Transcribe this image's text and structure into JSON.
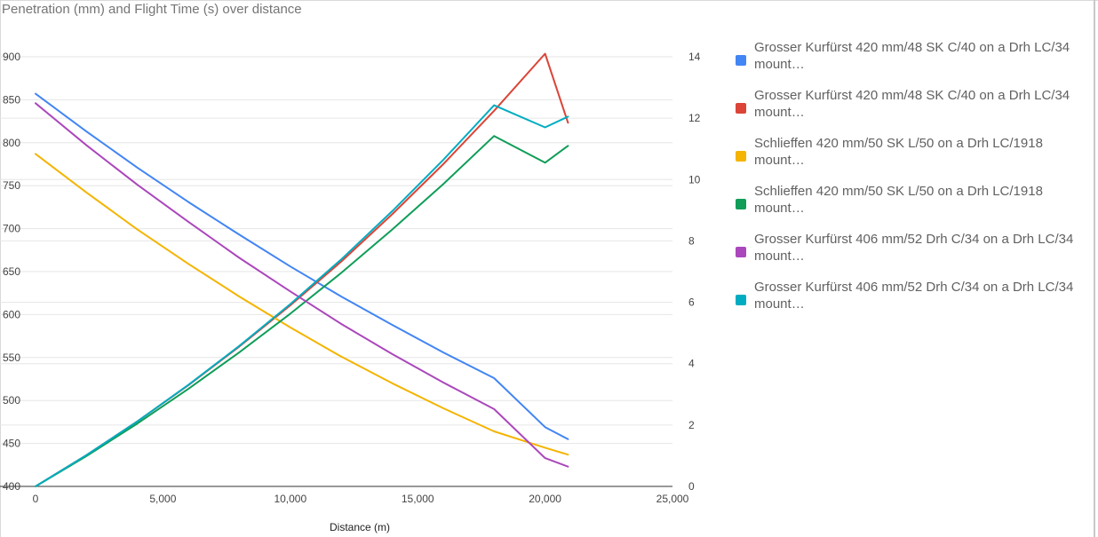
{
  "window": {
    "title": "Penetration (mm) and Flight Time (s) over distance"
  },
  "chart_data": {
    "type": "line",
    "title": "Penetration (mm) and Flight Time (s) over distance",
    "xlabel": "Distance (m)",
    "ylabel": "",
    "y2label": "",
    "xlim": [
      0,
      25000
    ],
    "ylim": [
      400,
      900
    ],
    "y2lim": [
      0,
      14
    ],
    "grid": true,
    "legend_position": "right",
    "x_ticks": [
      "0",
      "5,000",
      "10,000",
      "15,000",
      "20,000",
      "25,000"
    ],
    "y_ticks": [
      "400",
      "450",
      "500",
      "550",
      "600",
      "650",
      "700",
      "750",
      "800",
      "850",
      "900"
    ],
    "y2_ticks": [
      "0",
      "2",
      "4",
      "6",
      "8",
      "10",
      "12",
      "14"
    ],
    "x": [
      0,
      2000,
      4000,
      6000,
      8000,
      10000,
      12000,
      14000,
      16000,
      18000,
      20000,
      20900
    ],
    "series": [
      {
        "name": "Grosser Kurfürst 420 mm/48 SK C/40 on a Drh LC/34 mount…",
        "axis": "left",
        "color": "#4285f4",
        "values": [
          857,
          813,
          771,
          731,
          693,
          656,
          621,
          588,
          556,
          526,
          469,
          455
        ]
      },
      {
        "name": "Grosser Kurfürst 420 mm/48 SK C/40 on a Drh LC/34 mount…",
        "axis": "right",
        "color": "#db4437",
        "values": [
          0.0,
          1.02,
          2.12,
          3.3,
          4.56,
          5.9,
          7.33,
          8.87,
          10.5,
          12.24,
          14.1,
          11.85
        ]
      },
      {
        "name": "Schlieffen 420 mm/50 SK L/50 on a Drh LC/1918 mount…",
        "axis": "left",
        "color": "#f4b400",
        "values": [
          787,
          742,
          699,
          659,
          621,
          585,
          551,
          520,
          491,
          464,
          445,
          437
        ]
      },
      {
        "name": "Schlieffen 420 mm/50 SK L/50 on a Drh LC/1918 mount…",
        "axis": "right",
        "color": "#0f9d58",
        "values": [
          0.0,
          0.99,
          2.05,
          3.18,
          4.37,
          5.63,
          6.96,
          8.37,
          9.85,
          11.42,
          10.55,
          11.1
        ]
      },
      {
        "name": "Grosser Kurfürst 406 mm/52 Drh C/34 on a Drh LC/34 mount…",
        "axis": "left",
        "color": "#ab47bc",
        "values": [
          846,
          797,
          751,
          708,
          666,
          627,
          589,
          554,
          521,
          490,
          433,
          423
        ]
      },
      {
        "name": "Grosser Kurfürst 406 mm/52 Drh C/34 on a Drh LC/34 mount…",
        "axis": "right",
        "color": "#00acc1",
        "values": [
          0.0,
          1.02,
          2.12,
          3.31,
          4.58,
          5.94,
          7.4,
          8.97,
          10.64,
          12.42,
          11.7,
          12.05
        ]
      }
    ]
  }
}
